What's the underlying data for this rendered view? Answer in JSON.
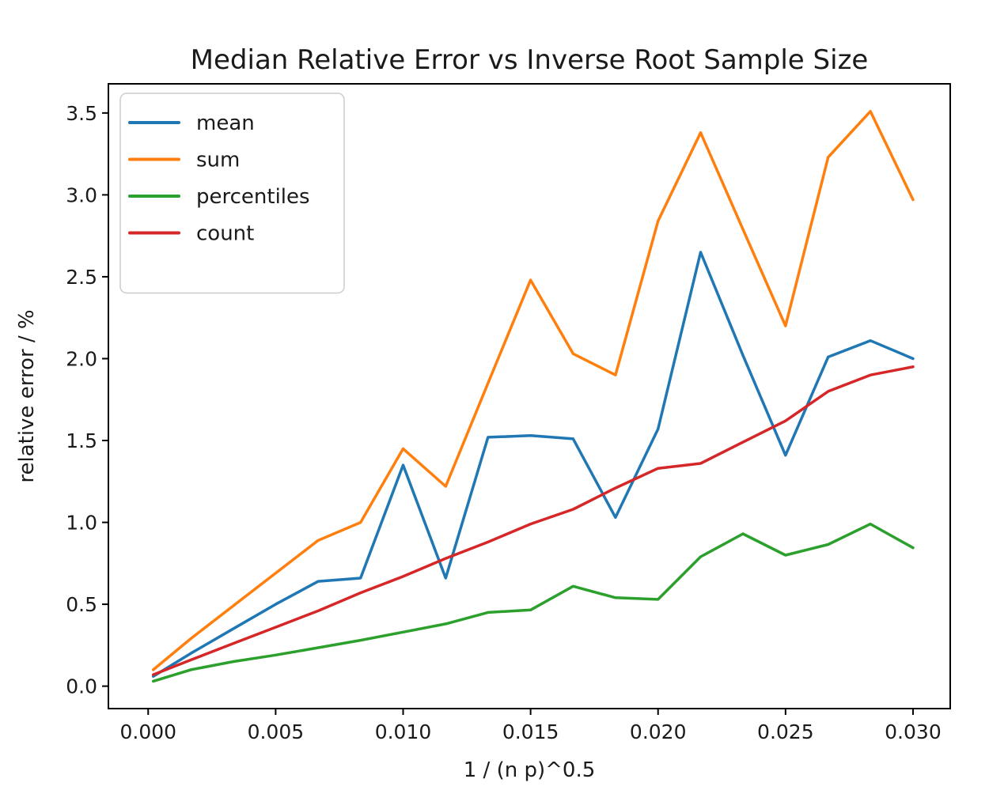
{
  "title": "Median Relative Error vs Inverse Root Sample Size",
  "chart_data": {
    "type": "line",
    "title": "Median Relative Error vs Inverse Root Sample Size",
    "xlabel": "1 / (n p)^0.5",
    "ylabel": "relative error / %",
    "xlim": [
      -0.00156,
      0.03146
    ],
    "ylim": [
      -0.137,
      3.678
    ],
    "grid": false,
    "legend_position": "upper left",
    "xticks": {
      "values": [
        0.0,
        0.005,
        0.01,
        0.015,
        0.02,
        0.025,
        0.03
      ],
      "labels": [
        "0.000",
        "0.005",
        "0.010",
        "0.015",
        "0.020",
        "0.025",
        "0.030"
      ]
    },
    "yticks": {
      "values": [
        0.0,
        0.5,
        1.0,
        1.5,
        2.0,
        2.5,
        3.0,
        3.5
      ],
      "labels": [
        "0.0",
        "0.5",
        "1.0",
        "1.5",
        "2.0",
        "2.5",
        "3.0",
        "3.5"
      ]
    },
    "x": [
      0.0002,
      0.00167,
      0.00333,
      0.005,
      0.00667,
      0.00833,
      0.01,
      0.01167,
      0.01333,
      0.015,
      0.01667,
      0.01833,
      0.02,
      0.02167,
      0.02333,
      0.025,
      0.02667,
      0.02833,
      0.03
    ],
    "series": [
      {
        "name": "mean",
        "color": "#1f77b4",
        "values": [
          0.06,
          0.2,
          0.35,
          0.5,
          0.64,
          0.66,
          1.35,
          0.66,
          1.52,
          1.53,
          1.51,
          1.03,
          1.57,
          2.65,
          2.02,
          1.41,
          2.01,
          2.11,
          2.0
        ]
      },
      {
        "name": "sum",
        "color": "#ff7f0e",
        "values": [
          0.1,
          0.29,
          0.49,
          0.69,
          0.89,
          1.0,
          1.45,
          1.22,
          1.85,
          2.48,
          2.03,
          1.9,
          2.84,
          3.38,
          2.79,
          2.2,
          3.23,
          3.51,
          2.97
        ]
      },
      {
        "name": "percentiles",
        "color": "#2ca02c",
        "values": [
          0.03,
          0.1,
          0.15,
          0.19,
          0.235,
          0.28,
          0.33,
          0.38,
          0.45,
          0.465,
          0.61,
          0.54,
          0.53,
          0.79,
          0.93,
          0.8,
          0.865,
          0.99,
          0.845
        ]
      },
      {
        "name": "count",
        "color": "#d62728",
        "values": [
          0.07,
          0.16,
          0.26,
          0.36,
          0.46,
          0.57,
          0.67,
          0.78,
          0.88,
          0.99,
          1.08,
          1.21,
          1.33,
          1.36,
          1.49,
          1.62,
          1.8,
          1.9,
          1.95
        ]
      }
    ]
  }
}
